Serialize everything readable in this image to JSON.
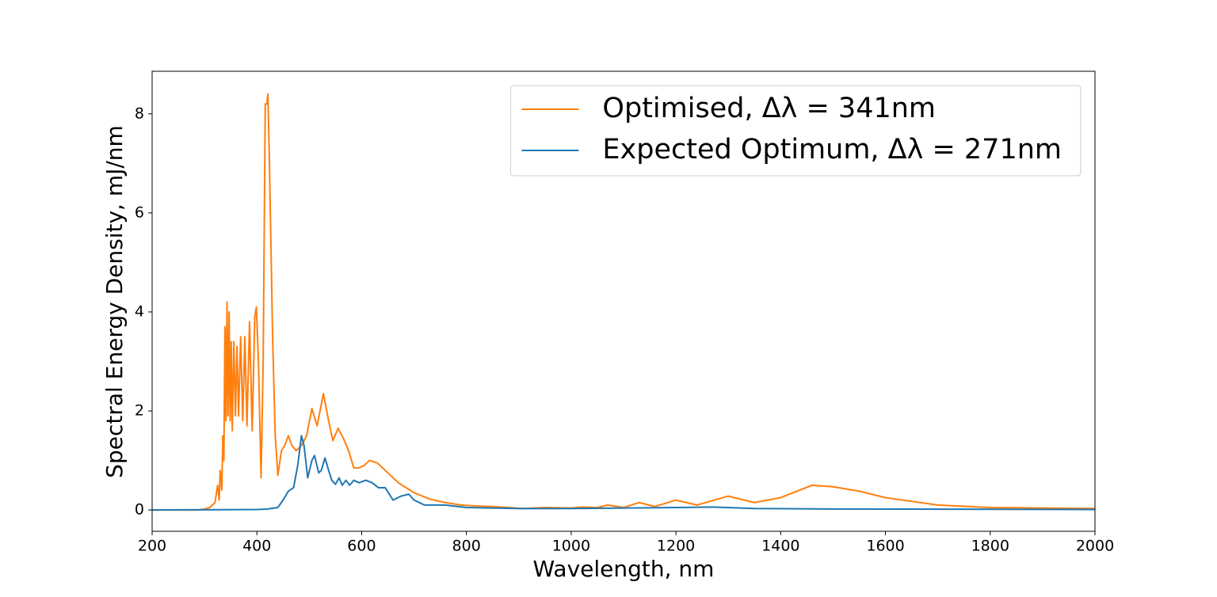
{
  "chart_data": {
    "type": "line",
    "x_label": "Wavelength, nm",
    "y_label": "Spectral Energy Density, mJ/nm",
    "xlim": [
      200,
      2000
    ],
    "xticks": [
      200,
      400,
      600,
      800,
      1000,
      1200,
      1400,
      1600,
      1800,
      2000
    ],
    "ylim": [
      -0.43,
      8.86
    ],
    "yticks": [
      0,
      2,
      4,
      6,
      8
    ],
    "legend": "upper right",
    "series": [
      {
        "name": "Optimised, Δλ = 341nm",
        "color": "#ff7f0e",
        "x": [
          200,
          290,
          300,
          310,
          320,
          325,
          328,
          330,
          333,
          335,
          337,
          339,
          341,
          343,
          345,
          347,
          349,
          351,
          353,
          356,
          359,
          362,
          365,
          369,
          373,
          377,
          381,
          386,
          391,
          396,
          399,
          403,
          408,
          412,
          416,
          419,
          421,
          424,
          430,
          435,
          440,
          447,
          453,
          460,
          467,
          475,
          485,
          495,
          505,
          515,
          527,
          537,
          545,
          555,
          565,
          575,
          585,
          595,
          605,
          615,
          630,
          650,
          670,
          700,
          730,
          760,
          790,
          820,
          850,
          880,
          910,
          950,
          1000,
          1020,
          1050,
          1070,
          1100,
          1130,
          1160,
          1200,
          1240,
          1300,
          1350,
          1400,
          1460,
          1500,
          1550,
          1600,
          1700,
          1800,
          1900,
          2000
        ],
        "values": [
          0,
          0,
          0.02,
          0.05,
          0.15,
          0.5,
          0.2,
          0.8,
          0.4,
          1.5,
          1.0,
          3.7,
          1.8,
          4.2,
          1.9,
          4.0,
          1.8,
          3.4,
          1.6,
          3.4,
          1.9,
          3.3,
          1.9,
          3.5,
          1.8,
          3.5,
          1.7,
          3.8,
          1.6,
          3.9,
          4.1,
          3.0,
          0.65,
          3.0,
          8.2,
          8.2,
          8.4,
          7.0,
          3.5,
          1.5,
          0.7,
          1.2,
          1.3,
          1.5,
          1.3,
          1.2,
          1.3,
          1.5,
          2.05,
          1.7,
          2.35,
          1.8,
          1.4,
          1.65,
          1.45,
          1.2,
          0.85,
          0.85,
          0.9,
          1.0,
          0.95,
          0.75,
          0.55,
          0.35,
          0.22,
          0.15,
          0.1,
          0.08,
          0.07,
          0.05,
          0.03,
          0.05,
          0.04,
          0.06,
          0.05,
          0.1,
          0.05,
          0.15,
          0.07,
          0.2,
          0.1,
          0.28,
          0.15,
          0.25,
          0.5,
          0.47,
          0.38,
          0.25,
          0.1,
          0.05,
          0.04,
          0.03
        ]
      },
      {
        "name": "Expected Optimum, Δλ = 271nm",
        "color": "#1f77b4",
        "x": [
          200,
          400,
          420,
          440,
          450,
          460,
          470,
          478,
          485,
          490,
          497,
          505,
          510,
          518,
          523,
          530,
          537,
          543,
          550,
          557,
          563,
          570,
          577,
          585,
          595,
          608,
          620,
          632,
          645,
          660,
          675,
          690,
          700,
          720,
          760,
          800,
          850,
          900,
          1000,
          1100,
          1200,
          1270,
          1350,
          1500,
          2000
        ],
        "values": [
          0,
          0.01,
          0.02,
          0.05,
          0.2,
          0.38,
          0.45,
          0.9,
          1.5,
          1.3,
          0.65,
          1.0,
          1.1,
          0.75,
          0.8,
          1.05,
          0.8,
          0.6,
          0.52,
          0.65,
          0.5,
          0.6,
          0.5,
          0.6,
          0.55,
          0.6,
          0.55,
          0.45,
          0.45,
          0.2,
          0.28,
          0.32,
          0.2,
          0.1,
          0.1,
          0.05,
          0.04,
          0.03,
          0.03,
          0.04,
          0.05,
          0.06,
          0.03,
          0.02,
          0.01
        ]
      }
    ]
  }
}
